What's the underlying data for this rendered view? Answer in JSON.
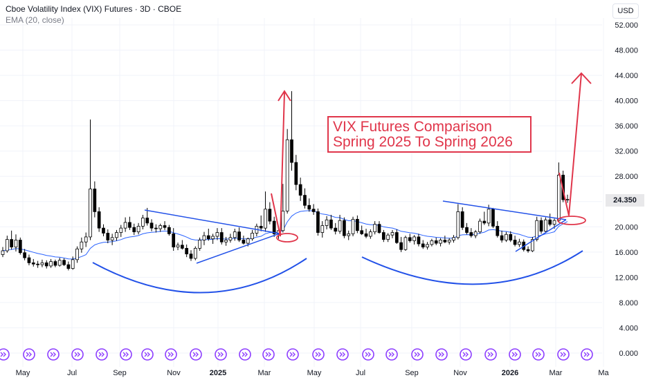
{
  "header": {
    "title": "Cboe Volatility Index (VIX) Futures · 3D · CBOE",
    "indicator": "EMA (20, close)"
  },
  "currency_button": "USD",
  "last_price_tag": "24.350",
  "annotation": {
    "line1": "VIX Futures Comparison",
    "line2": "Spring 2025 To Spring 2026"
  },
  "colors": {
    "candle_up": "#ffffff",
    "candle_down": "#000000",
    "ema": "#2962ff",
    "drawing_blue": "#2251e8",
    "drawing_red": "#e0354a",
    "event_icon": "#8c3cff"
  },
  "icons": {
    "event_marker": "chevrons-right-icon"
  },
  "chart_data": {
    "type": "candlestick",
    "title": "Cboe Volatility Index (VIX) Futures · 3D · CBOE",
    "indicators": [
      "EMA (20, close)"
    ],
    "y_axis": {
      "position": "right",
      "ylim": [
        0,
        54
      ],
      "ticks": [
        "52.000",
        "48.000",
        "44.000",
        "40.000",
        "36.000",
        "32.000",
        "28.000",
        "24.000",
        "20.000",
        "16.000",
        "12.000",
        "8.000",
        "4.000",
        "0.000"
      ]
    },
    "x_axis": {
      "ticks": [
        "May",
        "Jul",
        "Sep",
        "Nov",
        "2025",
        "Mar",
        "May",
        "Jul",
        "Sep",
        "Nov",
        "2026",
        "Mar",
        "Ma"
      ]
    },
    "grid": true,
    "last_price": 24.35,
    "candles": [
      [
        15.6,
        16.8,
        15.2,
        16.2
      ],
      [
        16.2,
        18.6,
        15.9,
        18.0
      ],
      [
        18.0,
        19.4,
        16.4,
        16.8
      ],
      [
        16.8,
        18.8,
        16.1,
        17.9
      ],
      [
        17.9,
        18.3,
        15.6,
        15.9
      ],
      [
        15.9,
        16.5,
        14.7,
        15.1
      ],
      [
        15.1,
        15.6,
        13.9,
        14.3
      ],
      [
        14.3,
        14.9,
        13.7,
        14.1
      ],
      [
        14.1,
        14.6,
        13.5,
        14.0
      ],
      [
        14.0,
        14.8,
        13.6,
        14.3
      ],
      [
        14.3,
        14.7,
        13.4,
        13.8
      ],
      [
        13.8,
        14.9,
        13.5,
        14.5
      ],
      [
        14.5,
        14.8,
        13.6,
        13.9
      ],
      [
        13.9,
        15.1,
        13.7,
        14.7
      ],
      [
        14.7,
        15.0,
        13.8,
        14.0
      ],
      [
        14.0,
        14.5,
        13.1,
        13.4
      ],
      [
        13.4,
        15.3,
        13.2,
        14.8
      ],
      [
        14.8,
        16.9,
        14.3,
        16.5
      ],
      [
        16.5,
        18.3,
        15.9,
        17.6
      ],
      [
        17.6,
        19.1,
        16.8,
        18.4
      ],
      [
        18.4,
        37.0,
        17.9,
        26.0
      ],
      [
        26.0,
        27.2,
        21.5,
        22.4
      ],
      [
        22.4,
        23.1,
        19.2,
        19.8
      ],
      [
        19.8,
        20.4,
        18.5,
        19.0
      ],
      [
        19.0,
        19.6,
        17.4,
        17.9
      ],
      [
        17.9,
        18.9,
        17.1,
        18.3
      ],
      [
        18.3,
        19.5,
        17.8,
        19.1
      ],
      [
        19.1,
        20.3,
        18.4,
        19.8
      ],
      [
        19.8,
        21.5,
        19.2,
        20.7
      ],
      [
        20.7,
        21.6,
        19.5,
        19.9
      ],
      [
        19.9,
        20.5,
        18.7,
        19.2
      ],
      [
        19.2,
        20.6,
        18.8,
        20.1
      ],
      [
        20.1,
        21.9,
        19.6,
        21.4
      ],
      [
        21.4,
        23.0,
        20.2,
        20.6
      ],
      [
        20.6,
        21.2,
        19.3,
        19.8
      ],
      [
        19.8,
        20.4,
        19.1,
        19.7
      ],
      [
        19.7,
        20.5,
        19.2,
        20.2
      ],
      [
        20.2,
        20.9,
        19.5,
        19.9
      ],
      [
        19.9,
        20.3,
        18.6,
        18.9
      ],
      [
        18.9,
        19.8,
        16.2,
        16.8
      ],
      [
        16.8,
        17.5,
        16.3,
        17.1
      ],
      [
        17.1,
        17.9,
        16.4,
        16.6
      ],
      [
        16.6,
        17.2,
        15.2,
        15.7
      ],
      [
        15.7,
        16.3,
        14.6,
        15.0
      ],
      [
        15.0,
        16.9,
        14.7,
        16.6
      ],
      [
        16.6,
        18.3,
        16.2,
        17.9
      ],
      [
        17.9,
        19.2,
        17.1,
        18.6
      ],
      [
        18.6,
        19.7,
        17.8,
        18.1
      ],
      [
        18.1,
        18.9,
        17.3,
        18.5
      ],
      [
        18.5,
        19.8,
        17.9,
        19.1
      ],
      [
        19.1,
        19.8,
        17.2,
        17.6
      ],
      [
        17.6,
        18.4,
        17.0,
        17.9
      ],
      [
        17.9,
        18.9,
        17.5,
        18.3
      ],
      [
        18.3,
        19.7,
        17.8,
        19.2
      ],
      [
        19.2,
        19.9,
        17.6,
        17.9
      ],
      [
        17.9,
        18.6,
        17.2,
        17.4
      ],
      [
        17.4,
        18.3,
        16.9,
        18.1
      ],
      [
        18.1,
        19.5,
        17.8,
        19.0
      ],
      [
        19.0,
        20.5,
        18.5,
        20.1
      ],
      [
        20.1,
        21.8,
        19.3,
        19.8
      ],
      [
        19.8,
        25.6,
        19.2,
        22.8
      ],
      [
        22.8,
        23.9,
        20.4,
        20.9
      ],
      [
        20.9,
        21.6,
        18.4,
        18.9
      ],
      [
        18.9,
        19.9,
        18.1,
        19.4
      ],
      [
        19.4,
        26.8,
        19.1,
        22.5
      ],
      [
        22.5,
        35.5,
        22.1,
        33.8
      ],
      [
        33.8,
        41.5,
        28.9,
        30.2
      ],
      [
        30.2,
        31.4,
        25.8,
        26.7
      ],
      [
        26.7,
        27.8,
        24.1,
        25.0
      ],
      [
        25.0,
        26.1,
        22.9,
        23.4
      ],
      [
        23.4,
        24.5,
        22.4,
        22.8
      ],
      [
        22.8,
        23.6,
        21.9,
        22.4
      ],
      [
        22.4,
        22.9,
        18.6,
        19.1
      ],
      [
        19.1,
        20.9,
        18.3,
        20.2
      ],
      [
        20.2,
        21.7,
        19.6,
        21.1
      ],
      [
        21.1,
        21.9,
        19.5,
        19.8
      ],
      [
        19.8,
        20.6,
        18.8,
        19.3
      ],
      [
        19.3,
        21.9,
        18.9,
        21.0
      ],
      [
        21.0,
        21.5,
        18.2,
        18.6
      ],
      [
        18.6,
        19.4,
        17.9,
        18.9
      ],
      [
        18.9,
        21.6,
        18.5,
        21.2
      ],
      [
        21.2,
        21.8,
        19.0,
        19.4
      ],
      [
        19.4,
        20.2,
        18.7,
        18.9
      ],
      [
        18.9,
        19.7,
        18.2,
        18.5
      ],
      [
        18.5,
        19.6,
        18.1,
        19.2
      ],
      [
        19.2,
        20.9,
        18.8,
        20.4
      ],
      [
        20.4,
        20.9,
        18.9,
        19.1
      ],
      [
        19.1,
        19.5,
        17.6,
        18.0
      ],
      [
        18.0,
        19.0,
        17.6,
        18.7
      ],
      [
        18.7,
        19.5,
        18.2,
        19.1
      ],
      [
        19.1,
        19.6,
        17.3,
        17.5
      ],
      [
        17.5,
        18.4,
        16.0,
        16.4
      ],
      [
        16.4,
        18.6,
        16.2,
        18.3
      ],
      [
        18.3,
        18.9,
        17.5,
        17.8
      ],
      [
        17.8,
        18.7,
        17.2,
        18.4
      ],
      [
        18.4,
        18.9,
        16.9,
        17.3
      ],
      [
        17.3,
        17.9,
        16.5,
        16.8
      ],
      [
        16.8,
        17.6,
        16.4,
        17.2
      ],
      [
        17.2,
        18.1,
        16.9,
        17.8
      ],
      [
        17.8,
        18.3,
        17.1,
        17.4
      ],
      [
        17.4,
        18.2,
        16.9,
        17.9
      ],
      [
        17.9,
        18.6,
        17.4,
        17.6
      ],
      [
        17.6,
        18.2,
        17.2,
        17.9
      ],
      [
        17.9,
        18.7,
        17.5,
        18.3
      ],
      [
        18.3,
        23.6,
        18.0,
        22.4
      ],
      [
        22.4,
        23.1,
        19.5,
        19.9
      ],
      [
        19.9,
        20.6,
        18.8,
        19.1
      ],
      [
        19.1,
        19.8,
        18.3,
        18.6
      ],
      [
        18.6,
        19.5,
        18.2,
        19.2
      ],
      [
        19.2,
        21.3,
        18.9,
        20.9
      ],
      [
        20.9,
        22.4,
        20.3,
        20.6
      ],
      [
        20.6,
        23.5,
        20.1,
        22.8
      ],
      [
        22.8,
        23.0,
        19.8,
        20.1
      ],
      [
        20.1,
        20.9,
        18.3,
        18.6
      ],
      [
        18.6,
        19.4,
        17.5,
        17.9
      ],
      [
        17.9,
        19.2,
        17.6,
        18.8
      ],
      [
        18.8,
        19.3,
        17.6,
        17.9
      ],
      [
        17.9,
        18.6,
        16.9,
        17.2
      ],
      [
        17.2,
        18.1,
        16.8,
        17.6
      ],
      [
        17.6,
        18.0,
        16.1,
        16.4
      ],
      [
        16.4,
        16.9,
        15.9,
        16.2
      ],
      [
        16.2,
        18.4,
        16.0,
        18.0
      ],
      [
        18.0,
        21.6,
        17.7,
        21.0
      ],
      [
        21.0,
        21.5,
        18.9,
        19.3
      ],
      [
        19.3,
        21.5,
        19.0,
        21.1
      ],
      [
        21.1,
        22.1,
        20.1,
        20.4
      ],
      [
        20.4,
        21.3,
        19.7,
        21.0
      ],
      [
        21.0,
        30.2,
        20.8,
        28.2
      ],
      [
        28.2,
        28.9,
        23.9,
        24.3
      ],
      [
        24.3,
        25.1,
        23.8,
        24.35
      ]
    ]
  }
}
